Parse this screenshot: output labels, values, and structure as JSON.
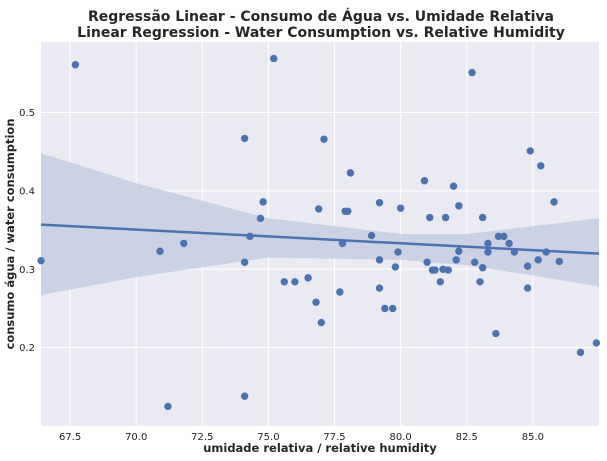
{
  "chart_data": {
    "type": "scatter",
    "title": "Regressão Linear - Consumo de Água vs. Umidade Relativa",
    "subtitle": "Linear Regression - Water Consumption vs. Relative Humidity",
    "xlabel": "umidade relativa / relative humidity",
    "ylabel": "consumo água / water consumption",
    "xlim": [
      66.4,
      87.5
    ],
    "ylim": [
      0.1,
      0.59
    ],
    "xticks": [
      67.5,
      70.0,
      72.5,
      75.0,
      77.5,
      80.0,
      82.5,
      85.0
    ],
    "xtick_labels": [
      "67.5",
      "70.0",
      "72.5",
      "75.0",
      "77.5",
      "80.0",
      "82.5",
      "85.0"
    ],
    "yticks": [
      0.2,
      0.3,
      0.4,
      0.5
    ],
    "ytick_labels": [
      "0.2",
      "0.3",
      "0.4",
      "0.5"
    ],
    "grid": true,
    "colors": {
      "background": "#eaeaf2",
      "grid": "#ffffff",
      "points": "#4c72b0",
      "line": "#4c72b0",
      "band": "#c5cee3"
    },
    "regression": {
      "x": [
        66.4,
        87.5
      ],
      "y": [
        0.357,
        0.32
      ]
    },
    "confidence_band": {
      "x": [
        66.4,
        70.0,
        75.0,
        80.0,
        82.5,
        85.0,
        87.5
      ],
      "upper": [
        0.448,
        0.41,
        0.365,
        0.345,
        0.345,
        0.355,
        0.365
      ],
      "lower": [
        0.267,
        0.29,
        0.315,
        0.312,
        0.305,
        0.292,
        0.278
      ]
    },
    "x": [
      66.4,
      67.7,
      70.9,
      71.2,
      71.8,
      74.1,
      74.1,
      74.1,
      74.3,
      74.7,
      74.8,
      75.2,
      75.6,
      76.0,
      76.5,
      76.8,
      76.9,
      77.0,
      77.1,
      77.7,
      77.8,
      77.9,
      78.0,
      78.1,
      78.9,
      79.2,
      79.2,
      79.2,
      79.4,
      79.7,
      79.8,
      79.9,
      80.0,
      80.9,
      81.0,
      81.1,
      81.2,
      81.3,
      81.5,
      81.6,
      81.7,
      81.8,
      82.0,
      82.1,
      82.2,
      82.2,
      82.7,
      82.8,
      83.0,
      83.1,
      83.1,
      83.3,
      83.3,
      83.6,
      83.7,
      83.9,
      84.1,
      84.3,
      84.8,
      84.8,
      84.9,
      85.2,
      85.3,
      85.5,
      85.8,
      86.0,
      86.8,
      87.4
    ],
    "y": [
      0.311,
      0.561,
      0.323,
      0.125,
      0.333,
      0.467,
      0.309,
      0.138,
      0.342,
      0.365,
      0.386,
      0.569,
      0.284,
      0.284,
      0.289,
      0.258,
      0.377,
      0.232,
      0.466,
      0.271,
      0.333,
      0.374,
      0.374,
      0.423,
      0.343,
      0.385,
      0.312,
      0.276,
      0.25,
      0.25,
      0.303,
      0.322,
      0.378,
      0.413,
      0.309,
      0.366,
      0.299,
      0.299,
      0.284,
      0.3,
      0.366,
      0.299,
      0.406,
      0.312,
      0.381,
      0.323,
      0.551,
      0.309,
      0.284,
      0.366,
      0.302,
      0.333,
      0.322,
      0.218,
      0.342,
      0.342,
      0.333,
      0.322,
      0.304,
      0.276,
      0.451,
      0.312,
      0.432,
      0.322,
      0.386,
      0.31,
      0.194,
      0.206
    ]
  }
}
